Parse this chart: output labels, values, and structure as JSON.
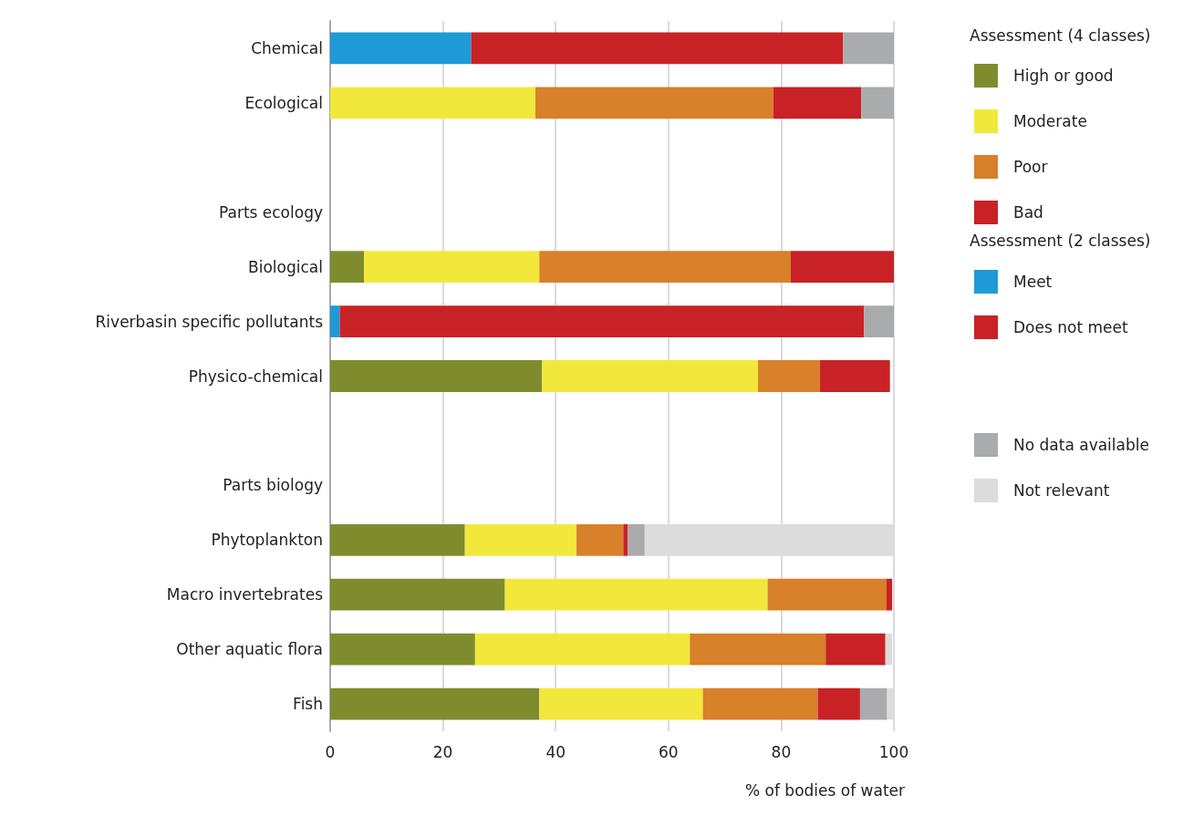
{
  "chart_data": {
    "type": "bar",
    "orientation": "horizontal",
    "stacked": true,
    "xlabel": "% of bodies of water",
    "legend_title": "Assessment (4 classes)",
    "annotations": [
      "Assessment (2 classes)"
    ],
    "categories": [
      "Chemical",
      "Ecological",
      null,
      "Parts ecology",
      "Biological",
      "Riverbasin specific pollutants",
      "Physico-chemical",
      null,
      "Parts biology",
      "Phytoplankton",
      "Macro invertebrates",
      "Other aquatic flora",
      "Fish"
    ],
    "xlim": [
      0,
      100
    ],
    "xticks": [
      0,
      20,
      40,
      60,
      80,
      100
    ],
    "grid": "x",
    "legend": "right",
    "series": [
      {
        "name": "High or good",
        "color": "#7f8c2e",
        "values": [
          null,
          null,
          null,
          null,
          6,
          null,
          37.6,
          null,
          null,
          23.9,
          31,
          25.7,
          37.1
        ]
      },
      {
        "name": "Moderate",
        "color": "#f2e83c",
        "values": [
          null,
          36.4,
          null,
          null,
          31.1,
          null,
          38.3,
          null,
          null,
          19.8,
          46.6,
          38.1,
          29
        ]
      },
      {
        "name": "Poor",
        "color": "#d8802a",
        "values": [
          null,
          42.2,
          null,
          null,
          44.6,
          null,
          11,
          null,
          null,
          8.3,
          21.1,
          24.1,
          20.4
        ]
      },
      {
        "name": "Bad",
        "color": "#c82226",
        "values": [
          null,
          15.6,
          null,
          null,
          18.3,
          null,
          12.4,
          null,
          null,
          0.8,
          1,
          10.6,
          7.5
        ]
      },
      {
        "name": "Meet",
        "color": "#1e9ad6",
        "values": [
          25,
          null,
          null,
          null,
          null,
          1.7,
          null,
          null,
          null,
          null,
          null,
          null,
          null
        ]
      },
      {
        "name": "Does not meet",
        "color": "#c82226",
        "values": [
          66,
          null,
          null,
          null,
          null,
          93,
          null,
          null,
          null,
          null,
          null,
          null,
          null
        ]
      },
      {
        "name": "No data available",
        "color": "#a9abac",
        "values": [
          9,
          5.8,
          null,
          null,
          null,
          5.3,
          null,
          null,
          null,
          3,
          null,
          null,
          4.8
        ]
      },
      {
        "name": "Not relevant",
        "color": "#dcdcdc",
        "values": [
          null,
          null,
          null,
          null,
          null,
          null,
          null,
          null,
          null,
          44.2,
          null,
          1.2,
          1.2
        ]
      }
    ]
  }
}
